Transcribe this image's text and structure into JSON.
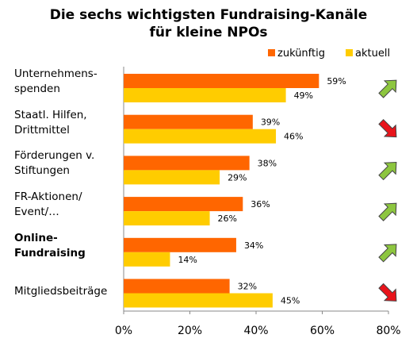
{
  "chart_data": {
    "type": "bar",
    "orientation": "horizontal",
    "title": [
      "Die sechs wichtigsten Fundraising-Kanäle",
      "für kleine NPOs"
    ],
    "categories": [
      {
        "lines": [
          "Unternehmens-",
          "spenden"
        ],
        "bold": false,
        "trend": "up"
      },
      {
        "lines": [
          "Staatl. Hilfen,",
          "Drittmittel"
        ],
        "bold": false,
        "trend": "down"
      },
      {
        "lines": [
          "Förderungen v.",
          "Stiftungen"
        ],
        "bold": false,
        "trend": "up"
      },
      {
        "lines": [
          "FR-Aktionen/",
          "Event/…"
        ],
        "bold": false,
        "trend": "up"
      },
      {
        "lines": [
          "Online-",
          "Fundraising"
        ],
        "bold": true,
        "trend": "up"
      },
      {
        "lines": [
          "Mitgliedsbeiträge"
        ],
        "bold": false,
        "trend": "down"
      }
    ],
    "series": [
      {
        "name": "zukünftig",
        "color": "#ff6600",
        "values": [
          59,
          39,
          38,
          36,
          34,
          32
        ],
        "labels": [
          "59%",
          "39%",
          "38%",
          "36%",
          "34%",
          "32%"
        ]
      },
      {
        "name": "aktuell",
        "color": "#ffcc00",
        "values": [
          49,
          46,
          29,
          26,
          14,
          45
        ],
        "labels": [
          "49%",
          "46%",
          "29%",
          "26%",
          "14%",
          "45%"
        ]
      }
    ],
    "xlim": [
      0,
      80
    ],
    "xticks": [
      0,
      20,
      40,
      60,
      80
    ],
    "xtick_labels": [
      "0%",
      "20%",
      "40%",
      "60%",
      "80%"
    ],
    "trend_colors": {
      "up": "#8dc63f",
      "down": "#e8141b"
    },
    "legend_position": "top-right",
    "grid": false
  }
}
